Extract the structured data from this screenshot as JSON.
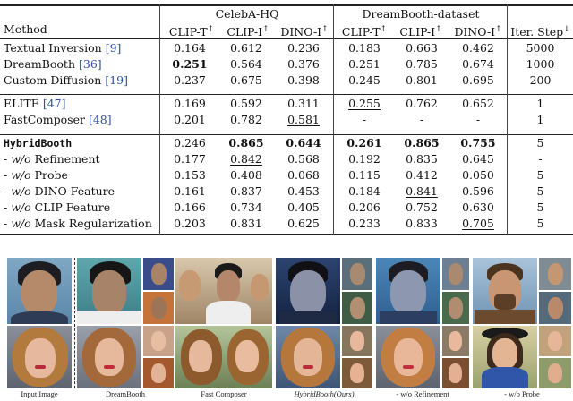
{
  "table": {
    "header": {
      "method": "Method",
      "celeba": "CelebA-HQ",
      "dreambooth_dataset": "DreamBooth-dataset",
      "metrics": [
        "CLIP-T",
        "CLIP-I",
        "DINO-I",
        "CLIP-T",
        "CLIP-I",
        "DINO-I"
      ],
      "arrow_up": "↑",
      "iter": "Iter. Step",
      "arrow_down": "↓"
    },
    "rows": [
      {
        "name": "Textual Inversion ",
        "ref": "[9]",
        "v": [
          "0.164",
          "0.612",
          "0.236",
          "0.183",
          "0.663",
          "0.462",
          "5000"
        ]
      },
      {
        "name": "DreamBooth ",
        "ref": "[36]",
        "v": [
          "0.251",
          "0.564",
          "0.376",
          "0.251",
          "0.785",
          "0.674",
          "1000"
        ]
      },
      {
        "name": "Custom Diffusion ",
        "ref": "[19]",
        "v": [
          "0.237",
          "0.675",
          "0.398",
          "0.245",
          "0.801",
          "0.695",
          "200"
        ]
      },
      {
        "name": "ELITE ",
        "ref": "[47]",
        "v": [
          "0.169",
          "0.592",
          "0.311",
          "0.255",
          "0.762",
          "0.652",
          "1"
        ]
      },
      {
        "name": "FastComposer ",
        "ref": "[48]",
        "v": [
          "0.201",
          "0.782",
          "0.581",
          "-",
          "-",
          "-",
          "1"
        ]
      },
      {
        "name": "HybridBooth",
        "ref": "",
        "v": [
          "0.246",
          "0.865",
          "0.644",
          "0.261",
          "0.865",
          "0.755",
          "5"
        ]
      },
      {
        "prefix": "- ",
        "wo": "w/o",
        "name": " Refinement",
        "v": [
          "0.177",
          "0.842",
          "0.568",
          "0.192",
          "0.835",
          "0.645",
          "-"
        ]
      },
      {
        "prefix": "- ",
        "wo": "w/o",
        "name": " Probe",
        "v": [
          "0.153",
          "0.408",
          "0.068",
          "0.115",
          "0.412",
          "0.050",
          "5"
        ]
      },
      {
        "prefix": "- ",
        "wo": "w/o",
        "name": " DINO Feature",
        "v": [
          "0.161",
          "0.837",
          "0.453",
          "0.184",
          "0.841",
          "0.596",
          "5"
        ]
      },
      {
        "prefix": "- ",
        "wo": "w/o",
        "name": " CLIP Feature",
        "v": [
          "0.166",
          "0.734",
          "0.405",
          "0.206",
          "0.752",
          "0.630",
          "5"
        ]
      },
      {
        "prefix": "- ",
        "wo": "w/o",
        "name": " Mask Regularization",
        "v": [
          "0.203",
          "0.831",
          "0.625",
          "0.233",
          "0.833",
          "0.705",
          "5"
        ]
      }
    ]
  },
  "figure": {
    "captions": [
      "Input Image",
      "DreamBooth",
      "Fast Composer",
      "HybridBooth(Ours)",
      "- w/o Refinement",
      "- w/o Probe"
    ]
  }
}
